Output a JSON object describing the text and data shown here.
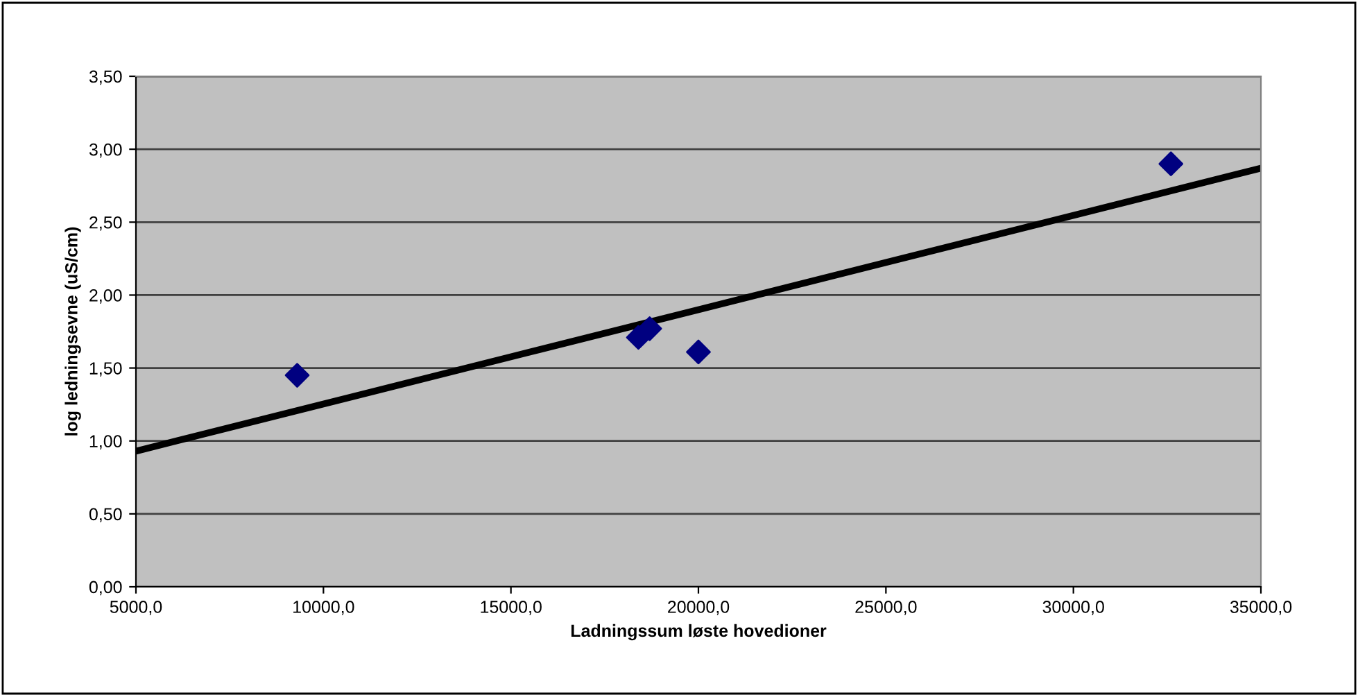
{
  "chart_data": {
    "type": "scatter",
    "xlabel": "Ladningssum løste hovedioner",
    "ylabel": "log ledningsevne (uS/cm)",
    "series": [
      {
        "color": "#000080",
        "marker": "diamond",
        "x": [
          9300,
          18400,
          18700,
          20000,
          32600
        ],
        "values": [
          1.45,
          1.71,
          1.77,
          1.61,
          2.9
        ]
      },
      {
        "type": "line",
        "color": "#000000",
        "marker": "none",
        "line_style": "solid",
        "x": [
          5000,
          35000
        ],
        "values": [
          0.93,
          2.87
        ]
      }
    ],
    "xlim": [
      5000,
      35000
    ],
    "xticks": [
      {
        "value": 5000,
        "label": "5000,0"
      },
      {
        "value": 10000,
        "label": "10000,0"
      },
      {
        "value": 15000,
        "label": "15000,0"
      },
      {
        "value": 20000,
        "label": "20000,0"
      },
      {
        "value": 25000,
        "label": "25000,0"
      },
      {
        "value": 30000,
        "label": "30000,0"
      },
      {
        "value": 35000,
        "label": "35000,0"
      }
    ],
    "ylim": [
      0,
      3.5
    ],
    "yticks": [
      {
        "value": 0,
        "label": "0,00"
      },
      {
        "value": 0.5,
        "label": "0,50"
      },
      {
        "value": 1,
        "label": "1,00"
      },
      {
        "value": 1.5,
        "label": "1,50"
      },
      {
        "value": 2,
        "label": "2,00"
      },
      {
        "value": 2.5,
        "label": "2,50"
      },
      {
        "value": 3,
        "label": "3,00"
      },
      {
        "value": 3.5,
        "label": "3,50"
      }
    ],
    "grid": "y",
    "legend": false
  }
}
